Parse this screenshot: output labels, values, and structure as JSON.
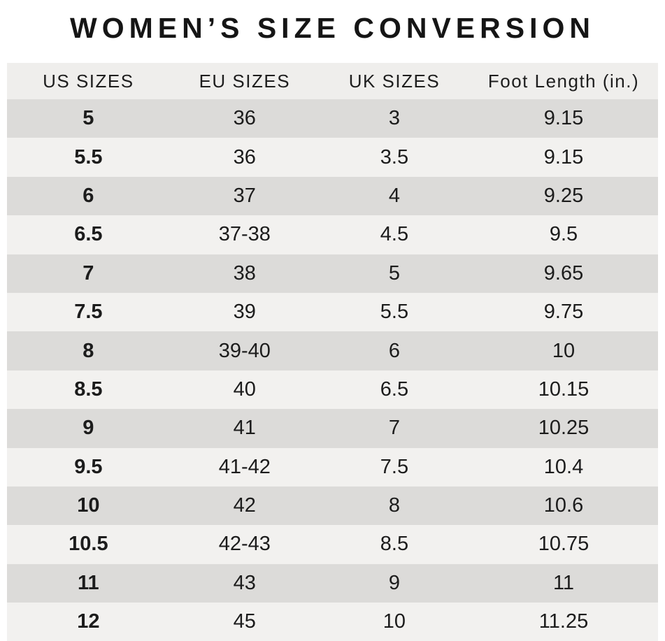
{
  "title": "WOMEN’S SIZE CONVERSION",
  "chart_data": {
    "type": "table",
    "title": "WOMEN’S SIZE CONVERSION",
    "columns": [
      "US SIZES",
      "EU SIZES",
      "UK SIZES",
      "Foot Length (in.)"
    ],
    "column_keys": [
      "us-sizes",
      "eu-sizes",
      "uk-sizes",
      "foot-length"
    ],
    "rows": [
      [
        "5",
        "36",
        "3",
        "9.15"
      ],
      [
        "5.5",
        "36",
        "3.5",
        "9.15"
      ],
      [
        "6",
        "37",
        "4",
        "9.25"
      ],
      [
        "6.5",
        "37-38",
        "4.5",
        "9.5"
      ],
      [
        "7",
        "38",
        "5",
        "9.65"
      ],
      [
        "7.5",
        "39",
        "5.5",
        "9.75"
      ],
      [
        "8",
        "39-40",
        "6",
        "10"
      ],
      [
        "8.5",
        "40",
        "6.5",
        "10.15"
      ],
      [
        "9",
        "41",
        "7",
        "10.25"
      ],
      [
        "9.5",
        "41-42",
        "7.5",
        "10.4"
      ],
      [
        "10",
        "42",
        "8",
        "10.6"
      ],
      [
        "10.5",
        "42-43",
        "8.5",
        "10.75"
      ],
      [
        "11",
        "43",
        "9",
        "11"
      ],
      [
        "12",
        "45",
        "10",
        "11.25"
      ]
    ],
    "layout_hints": {
      "row_striping": "alternating starting dark",
      "bold_column": "US SIZES"
    }
  },
  "colors": {
    "page_bg": "#ffffff",
    "header_bg": "#efeeec",
    "row_dark": "#dcdbd9",
    "row_light": "#f2f1ef",
    "text": "#1c1c1c",
    "title": "#151515"
  }
}
